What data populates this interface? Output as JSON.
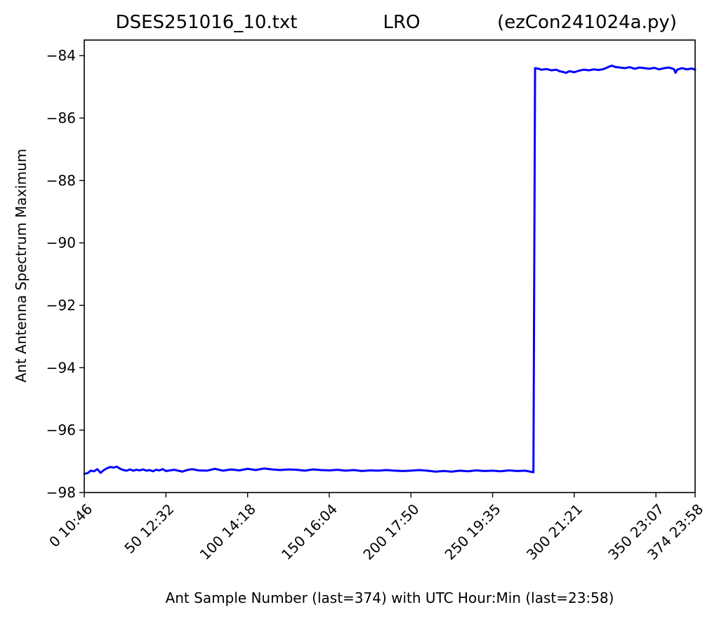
{
  "chart_data": {
    "type": "line",
    "title_left": "DSES251016_10.txt",
    "title_center": "LRO",
    "title_right": "(ezCon241024a.py)",
    "xlabel": "Ant Sample Number (last=374) with UTC Hour:Min (last=23:58)",
    "ylabel": "Ant Antenna Spectrum Maximum",
    "xlim": [
      0,
      374
    ],
    "ylim": [
      -98,
      -83.5
    ],
    "x_ticks": [
      {
        "value": 0,
        "label": "0  10:46"
      },
      {
        "value": 50,
        "label": "50  12:32"
      },
      {
        "value": 100,
        "label": "100  14:18"
      },
      {
        "value": 150,
        "label": "150  16:04"
      },
      {
        "value": 200,
        "label": "200  17:50"
      },
      {
        "value": 250,
        "label": "250  19:35"
      },
      {
        "value": 300,
        "label": "300  21:21"
      },
      {
        "value": 350,
        "label": "350  23:07"
      },
      {
        "value": 374,
        "label": "374  23:58"
      }
    ],
    "y_ticks": [
      {
        "value": -84,
        "label": "−84"
      },
      {
        "value": -86,
        "label": "−86"
      },
      {
        "value": -88,
        "label": "−88"
      },
      {
        "value": -90,
        "label": "−90"
      },
      {
        "value": -92,
        "label": "−92"
      },
      {
        "value": -94,
        "label": "−94"
      },
      {
        "value": -96,
        "label": "−96"
      },
      {
        "value": -98,
        "label": "−98"
      }
    ],
    "series": [
      {
        "color": "#0000ff",
        "points": [
          [
            0,
            -97.4
          ],
          [
            2,
            -97.38
          ],
          [
            4,
            -97.3
          ],
          [
            6,
            -97.32
          ],
          [
            8,
            -97.25
          ],
          [
            10,
            -97.37
          ],
          [
            12,
            -97.28
          ],
          [
            14,
            -97.22
          ],
          [
            16,
            -97.18
          ],
          [
            18,
            -97.2
          ],
          [
            20,
            -97.17
          ],
          [
            22,
            -97.24
          ],
          [
            24,
            -97.28
          ],
          [
            26,
            -97.3
          ],
          [
            28,
            -97.26
          ],
          [
            30,
            -97.3
          ],
          [
            32,
            -97.27
          ],
          [
            34,
            -97.29
          ],
          [
            36,
            -97.26
          ],
          [
            38,
            -97.3
          ],
          [
            40,
            -97.28
          ],
          [
            42,
            -97.32
          ],
          [
            44,
            -97.27
          ],
          [
            46,
            -97.29
          ],
          [
            48,
            -97.25
          ],
          [
            50,
            -97.31
          ],
          [
            55,
            -97.27
          ],
          [
            60,
            -97.33
          ],
          [
            63,
            -97.28
          ],
          [
            66,
            -97.25
          ],
          [
            70,
            -97.29
          ],
          [
            75,
            -97.3
          ],
          [
            80,
            -97.24
          ],
          [
            85,
            -97.3
          ],
          [
            90,
            -97.26
          ],
          [
            95,
            -97.29
          ],
          [
            100,
            -97.24
          ],
          [
            105,
            -97.28
          ],
          [
            110,
            -97.23
          ],
          [
            115,
            -97.26
          ],
          [
            120,
            -97.28
          ],
          [
            125,
            -97.26
          ],
          [
            130,
            -97.27
          ],
          [
            135,
            -97.3
          ],
          [
            140,
            -97.26
          ],
          [
            145,
            -97.28
          ],
          [
            150,
            -97.29
          ],
          [
            155,
            -97.27
          ],
          [
            160,
            -97.3
          ],
          [
            165,
            -97.28
          ],
          [
            170,
            -97.31
          ],
          [
            175,
            -97.29
          ],
          [
            180,
            -97.3
          ],
          [
            185,
            -97.28
          ],
          [
            190,
            -97.3
          ],
          [
            195,
            -97.31
          ],
          [
            200,
            -97.3
          ],
          [
            205,
            -97.28
          ],
          [
            210,
            -97.3
          ],
          [
            215,
            -97.33
          ],
          [
            220,
            -97.31
          ],
          [
            225,
            -97.33
          ],
          [
            230,
            -97.3
          ],
          [
            235,
            -97.32
          ],
          [
            240,
            -97.29
          ],
          [
            245,
            -97.31
          ],
          [
            250,
            -97.3
          ],
          [
            255,
            -97.32
          ],
          [
            260,
            -97.29
          ],
          [
            265,
            -97.31
          ],
          [
            270,
            -97.3
          ],
          [
            273,
            -97.33
          ],
          [
            275,
            -97.35
          ],
          [
            276,
            -84.4
          ],
          [
            278,
            -84.42
          ],
          [
            280,
            -84.45
          ],
          [
            283,
            -84.43
          ],
          [
            286,
            -84.47
          ],
          [
            289,
            -84.45
          ],
          [
            291,
            -84.5
          ],
          [
            293,
            -84.52
          ],
          [
            295,
            -84.55
          ],
          [
            297,
            -84.5
          ],
          [
            300,
            -84.53
          ],
          [
            303,
            -84.48
          ],
          [
            306,
            -84.45
          ],
          [
            309,
            -84.47
          ],
          [
            312,
            -84.44
          ],
          [
            315,
            -84.46
          ],
          [
            318,
            -84.43
          ],
          [
            321,
            -84.36
          ],
          [
            323,
            -84.32
          ],
          [
            325,
            -84.36
          ],
          [
            328,
            -84.38
          ],
          [
            331,
            -84.4
          ],
          [
            334,
            -84.37
          ],
          [
            337,
            -84.42
          ],
          [
            340,
            -84.38
          ],
          [
            343,
            -84.4
          ],
          [
            346,
            -84.42
          ],
          [
            349,
            -84.39
          ],
          [
            352,
            -84.44
          ],
          [
            355,
            -84.4
          ],
          [
            358,
            -84.38
          ],
          [
            361,
            -84.43
          ],
          [
            362,
            -84.55
          ],
          [
            363,
            -84.45
          ],
          [
            366,
            -84.4
          ],
          [
            369,
            -84.44
          ],
          [
            372,
            -84.41
          ],
          [
            374,
            -84.45
          ]
        ]
      }
    ]
  }
}
